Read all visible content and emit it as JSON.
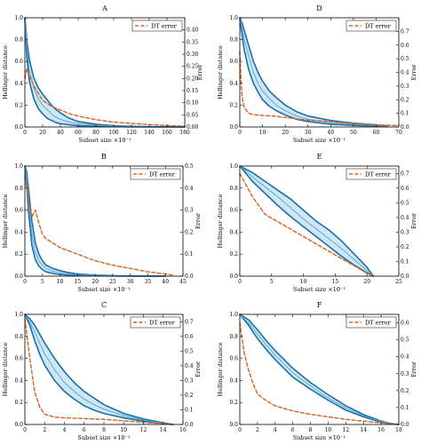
{
  "colors": {
    "band_fill": "#cfe6f3",
    "band_edge": "#1a6fab",
    "mean_line": "#5da9d6",
    "dt_error": "#d9601a",
    "axis": "#000000"
  },
  "chart_data": [
    {
      "panel": "A",
      "type": "line",
      "title": "A",
      "xlabel": "Subset size ×10⁻¹",
      "ylabel_left": "Hellinger distance",
      "ylabel_right": "Error",
      "xlim": [
        0,
        180
      ],
      "ylim_left": [
        0,
        1.0
      ],
      "ylim_right": [
        0,
        0.45
      ],
      "xticks": [
        0,
        20,
        40,
        60,
        80,
        100,
        120,
        140,
        160,
        180
      ],
      "yticks_left": [
        "0.0",
        "0.2",
        "0.4",
        "0.6",
        "0.8",
        "1.0"
      ],
      "yticks_right": [
        "0.00",
        "0.05",
        "0.10",
        "0.15",
        "0.20",
        "0.25",
        "0.30",
        "0.35",
        "0.40"
      ],
      "legend": {
        "label": "DT error",
        "loc": "upper right"
      },
      "hellinger_upper": {
        "x": [
          0,
          2,
          5,
          10,
          15,
          20,
          25,
          30,
          35,
          40,
          50,
          60,
          80,
          100,
          120,
          150,
          180
        ],
        "y": [
          1.0,
          0.8,
          0.62,
          0.45,
          0.36,
          0.3,
          0.25,
          0.2,
          0.16,
          0.13,
          0.08,
          0.05,
          0.025,
          0.012,
          0.006,
          0.002,
          0.0
        ]
      },
      "hellinger_mean": {
        "x": [
          0,
          2,
          5,
          10,
          15,
          20,
          25,
          30,
          35,
          40,
          50,
          60,
          80,
          100,
          120,
          150,
          180
        ],
        "y": [
          1.0,
          0.74,
          0.52,
          0.36,
          0.26,
          0.2,
          0.16,
          0.12,
          0.09,
          0.07,
          0.045,
          0.03,
          0.015,
          0.008,
          0.004,
          0.001,
          0.0
        ]
      },
      "hellinger_lower": {
        "x": [
          0,
          2,
          5,
          10,
          15,
          20,
          25,
          30,
          35,
          40,
          50,
          60,
          80,
          100,
          120,
          150,
          180
        ],
        "y": [
          1.0,
          0.66,
          0.42,
          0.26,
          0.17,
          0.12,
          0.08,
          0.06,
          0.04,
          0.03,
          0.02,
          0.012,
          0.006,
          0.003,
          0.001,
          0.0,
          0.0
        ]
      },
      "dt_error": {
        "x": [
          0,
          2,
          5,
          10,
          15,
          20,
          30,
          40,
          50,
          60,
          80,
          100,
          120,
          140,
          160,
          180
        ],
        "y": [
          0.2,
          0.24,
          0.21,
          0.17,
          0.14,
          0.11,
          0.085,
          0.07,
          0.055,
          0.045,
          0.03,
          0.02,
          0.015,
          0.01,
          0.006,
          0.003
        ]
      }
    },
    {
      "panel": "D",
      "type": "line",
      "title": "D",
      "xlabel": "Subset size ×10⁻¹",
      "ylabel_left": "Hellinger distance",
      "ylabel_right": "Error",
      "xlim": [
        0,
        70
      ],
      "ylim_left": [
        0,
        1.0
      ],
      "ylim_right": [
        0,
        0.8
      ],
      "xticks": [
        0,
        10,
        20,
        30,
        40,
        50,
        60,
        70
      ],
      "yticks_left": [
        "0.0",
        "0.2",
        "0.4",
        "0.6",
        "0.8",
        "1.0"
      ],
      "yticks_right": [
        "0.0",
        "0.1",
        "0.2",
        "0.3",
        "0.4",
        "0.5",
        "0.6",
        "0.7"
      ],
      "legend": {
        "label": "DT error",
        "loc": "upper right"
      },
      "hellinger_upper": {
        "x": [
          0,
          1,
          2,
          4,
          6,
          8,
          10,
          13,
          16,
          20,
          25,
          30,
          40,
          50,
          60,
          65
        ],
        "y": [
          1.0,
          0.95,
          0.88,
          0.74,
          0.6,
          0.5,
          0.42,
          0.33,
          0.27,
          0.2,
          0.14,
          0.1,
          0.06,
          0.035,
          0.02,
          0.01
        ]
      },
      "hellinger_mean": {
        "x": [
          0,
          1,
          2,
          4,
          6,
          8,
          10,
          13,
          16,
          20,
          25,
          30,
          40,
          50,
          60,
          65
        ],
        "y": [
          1.0,
          0.9,
          0.8,
          0.64,
          0.5,
          0.4,
          0.33,
          0.26,
          0.2,
          0.15,
          0.1,
          0.07,
          0.04,
          0.025,
          0.013,
          0.006
        ]
      },
      "hellinger_lower": {
        "x": [
          0,
          1,
          2,
          4,
          6,
          8,
          10,
          13,
          16,
          20,
          25,
          30,
          40,
          50,
          60,
          65
        ],
        "y": [
          1.0,
          0.84,
          0.7,
          0.52,
          0.4,
          0.32,
          0.25,
          0.19,
          0.15,
          0.11,
          0.07,
          0.05,
          0.025,
          0.015,
          0.008,
          0.003
        ]
      },
      "dt_error": {
        "x": [
          0,
          0.5,
          1,
          2,
          4,
          6,
          10,
          15,
          20,
          25,
          30,
          40,
          50,
          60,
          70
        ],
        "y": [
          0.55,
          0.35,
          0.22,
          0.14,
          0.1,
          0.09,
          0.085,
          0.08,
          0.07,
          0.06,
          0.05,
          0.04,
          0.025,
          0.015,
          0.01
        ]
      }
    },
    {
      "panel": "B",
      "type": "line",
      "title": "B",
      "xlabel": "Subset size ×10⁻¹",
      "ylabel_left": "Hellinger distance",
      "ylabel_right": "Error",
      "xlim": [
        0,
        45
      ],
      "ylim_left": [
        0,
        1.0
      ],
      "ylim_right": [
        0,
        0.5
      ],
      "xticks": [
        0,
        5,
        10,
        15,
        20,
        25,
        30,
        35,
        40,
        45
      ],
      "yticks_left": [
        "0.0",
        "0.2",
        "0.4",
        "0.6",
        "0.8",
        "1.0"
      ],
      "yticks_right": [
        "0.0",
        "0.1",
        "0.2",
        "0.3",
        "0.4",
        "0.5"
      ],
      "legend": {
        "label": "DT error",
        "loc": "upper right"
      },
      "hellinger_upper": {
        "x": [
          0,
          0.5,
          1,
          2,
          3,
          4,
          5,
          6,
          8,
          10,
          12,
          15,
          20,
          25,
          30,
          40
        ],
        "y": [
          1.0,
          0.95,
          0.8,
          0.5,
          0.3,
          0.2,
          0.14,
          0.1,
          0.07,
          0.05,
          0.035,
          0.02,
          0.01,
          0.005,
          0.002,
          0.0
        ]
      },
      "hellinger_mean": {
        "x": [
          0,
          0.5,
          1,
          2,
          3,
          4,
          5,
          6,
          8,
          10,
          12,
          15,
          20,
          25,
          30,
          40
        ],
        "y": [
          1.0,
          0.9,
          0.7,
          0.38,
          0.22,
          0.14,
          0.1,
          0.07,
          0.045,
          0.03,
          0.02,
          0.012,
          0.006,
          0.003,
          0.001,
          0.0
        ]
      },
      "hellinger_lower": {
        "x": [
          0,
          0.5,
          1,
          2,
          3,
          4,
          5,
          6,
          8,
          10,
          12,
          15,
          20,
          25,
          30,
          40
        ],
        "y": [
          1.0,
          0.85,
          0.6,
          0.28,
          0.15,
          0.09,
          0.06,
          0.04,
          0.025,
          0.015,
          0.01,
          0.006,
          0.003,
          0.001,
          0.0,
          0.0
        ]
      },
      "dt_error": {
        "x": [
          0,
          1,
          2,
          3,
          4,
          5,
          6,
          8,
          10,
          15,
          20,
          25,
          30,
          35,
          40,
          42
        ],
        "y": [
          0.45,
          0.35,
          0.27,
          0.3,
          0.24,
          0.19,
          0.17,
          0.15,
          0.13,
          0.1,
          0.07,
          0.05,
          0.035,
          0.02,
          0.01,
          0.005
        ]
      }
    },
    {
      "panel": "E",
      "type": "line",
      "title": "E",
      "xlabel": "Subset size ×10⁻¹",
      "ylabel_left": "Hellinger distance",
      "ylabel_right": "Error",
      "xlim": [
        0,
        25
      ],
      "ylim_left": [
        0,
        1.0
      ],
      "ylim_right": [
        0,
        0.75
      ],
      "xticks": [
        0,
        5,
        10,
        15,
        20,
        25
      ],
      "yticks_left": [
        "0.0",
        "0.2",
        "0.4",
        "0.6",
        "0.8",
        "1.0"
      ],
      "yticks_right": [
        "0.0",
        "0.1",
        "0.2",
        "0.3",
        "0.4",
        "0.5",
        "0.6",
        "0.7"
      ],
      "legend": {
        "label": "DT error",
        "loc": "upper right"
      },
      "hellinger_upper": {
        "x": [
          0,
          2,
          4,
          6,
          8,
          10,
          12,
          14,
          16,
          18,
          20,
          21
        ],
        "y": [
          1.0,
          0.94,
          0.86,
          0.78,
          0.7,
          0.6,
          0.5,
          0.42,
          0.32,
          0.2,
          0.08,
          0.0
        ]
      },
      "hellinger_mean": {
        "x": [
          0,
          2,
          4,
          6,
          8,
          10,
          12,
          14,
          16,
          18,
          20,
          21
        ],
        "y": [
          1.0,
          0.9,
          0.81,
          0.72,
          0.62,
          0.52,
          0.43,
          0.34,
          0.25,
          0.15,
          0.05,
          0.0
        ]
      },
      "hellinger_lower": {
        "x": [
          0,
          2,
          4,
          6,
          8,
          10,
          12,
          14,
          16,
          18,
          20,
          21
        ],
        "y": [
          1.0,
          0.86,
          0.75,
          0.64,
          0.54,
          0.45,
          0.36,
          0.27,
          0.18,
          0.1,
          0.03,
          0.0
        ]
      },
      "dt_error": {
        "x": [
          0,
          1,
          2,
          3,
          4,
          6,
          8,
          10,
          12,
          14,
          16,
          18,
          20,
          21
        ],
        "y": [
          0.7,
          0.62,
          0.54,
          0.48,
          0.42,
          0.37,
          0.32,
          0.27,
          0.22,
          0.17,
          0.12,
          0.07,
          0.02,
          0.0
        ]
      }
    },
    {
      "panel": "C",
      "type": "line",
      "title": "C",
      "xlabel": "Subset size ×10⁻¹",
      "ylabel_left": "Hellinger distance",
      "ylabel_right": "Error",
      "xlim": [
        0,
        16
      ],
      "ylim_left": [
        0,
        1.0
      ],
      "ylim_right": [
        0,
        0.75
      ],
      "xticks": [
        0,
        2,
        4,
        6,
        8,
        10,
        12,
        14,
        16
      ],
      "yticks_left": [
        "0.0",
        "0.2",
        "0.4",
        "0.6",
        "0.8",
        "1.0"
      ],
      "yticks_right": [
        "0.0",
        "0.1",
        "0.2",
        "0.3",
        "0.4",
        "0.5",
        "0.6",
        "0.7"
      ],
      "legend": {
        "label": "DT error",
        "loc": "upper right"
      },
      "hellinger_upper": {
        "x": [
          0,
          0.5,
          1,
          1.5,
          2,
          3,
          4,
          5,
          6,
          7,
          8,
          10,
          12,
          14,
          15
        ],
        "y": [
          1.0,
          0.96,
          0.9,
          0.82,
          0.74,
          0.6,
          0.48,
          0.38,
          0.3,
          0.24,
          0.18,
          0.1,
          0.05,
          0.015,
          0.0
        ]
      },
      "hellinger_mean": {
        "x": [
          0,
          0.5,
          1,
          1.5,
          2,
          3,
          4,
          5,
          6,
          7,
          8,
          10,
          12,
          14,
          15
        ],
        "y": [
          1.0,
          0.93,
          0.84,
          0.74,
          0.64,
          0.5,
          0.38,
          0.3,
          0.23,
          0.18,
          0.14,
          0.08,
          0.04,
          0.01,
          0.0
        ]
      },
      "hellinger_lower": {
        "x": [
          0,
          0.5,
          1,
          1.5,
          2,
          3,
          4,
          5,
          6,
          7,
          8,
          10,
          12,
          14,
          15
        ],
        "y": [
          1.0,
          0.9,
          0.76,
          0.64,
          0.54,
          0.4,
          0.3,
          0.23,
          0.17,
          0.13,
          0.1,
          0.06,
          0.03,
          0.008,
          0.0
        ]
      },
      "dt_error": {
        "x": [
          0,
          0.5,
          1,
          1.5,
          2,
          3,
          4,
          6,
          8,
          10,
          12,
          14,
          15
        ],
        "y": [
          0.72,
          0.45,
          0.22,
          0.12,
          0.07,
          0.05,
          0.045,
          0.04,
          0.035,
          0.025,
          0.015,
          0.005,
          0.0
        ]
      }
    },
    {
      "panel": "F",
      "type": "line",
      "title": "F",
      "xlabel": "Subset size ×10⁻¹",
      "ylabel_left": "Hellinger distance",
      "ylabel_right": "Error",
      "xlim": [
        0,
        18
      ],
      "ylim_left": [
        0,
        1.0
      ],
      "ylim_right": [
        0,
        0.65
      ],
      "xticks": [
        0,
        2,
        4,
        6,
        8,
        10,
        12,
        14,
        16,
        18
      ],
      "yticks_left": [
        "0.0",
        "0.2",
        "0.4",
        "0.6",
        "0.8",
        "1.0"
      ],
      "yticks_right": [
        "0.0",
        "0.1",
        "0.2",
        "0.3",
        "0.4",
        "0.5",
        "0.6"
      ],
      "legend": {
        "label": "DT error",
        "loc": "upper right"
      },
      "hellinger_upper": {
        "x": [
          0,
          1,
          2,
          3,
          4,
          5,
          6,
          8,
          10,
          12,
          14,
          16,
          17,
          18
        ],
        "y": [
          1.0,
          0.95,
          0.86,
          0.76,
          0.67,
          0.59,
          0.51,
          0.38,
          0.27,
          0.17,
          0.09,
          0.03,
          0.01,
          0.0
        ]
      },
      "hellinger_mean": {
        "x": [
          0,
          1,
          2,
          3,
          4,
          5,
          6,
          8,
          10,
          12,
          14,
          16,
          17,
          18
        ],
        "y": [
          1.0,
          0.92,
          0.82,
          0.72,
          0.63,
          0.55,
          0.47,
          0.35,
          0.24,
          0.15,
          0.08,
          0.025,
          0.008,
          0.0
        ]
      },
      "hellinger_lower": {
        "x": [
          0,
          1,
          2,
          3,
          4,
          5,
          6,
          8,
          10,
          12,
          14,
          16,
          17,
          18
        ],
        "y": [
          1.0,
          0.9,
          0.78,
          0.68,
          0.59,
          0.51,
          0.43,
          0.32,
          0.22,
          0.13,
          0.07,
          0.02,
          0.005,
          0.0
        ]
      },
      "dt_error": {
        "x": [
          0,
          0.5,
          1,
          1.5,
          2,
          3,
          4,
          6,
          8,
          10,
          12,
          14,
          16,
          18
        ],
        "y": [
          0.6,
          0.42,
          0.32,
          0.24,
          0.18,
          0.14,
          0.11,
          0.08,
          0.06,
          0.045,
          0.03,
          0.02,
          0.01,
          0.0
        ]
      }
    }
  ]
}
